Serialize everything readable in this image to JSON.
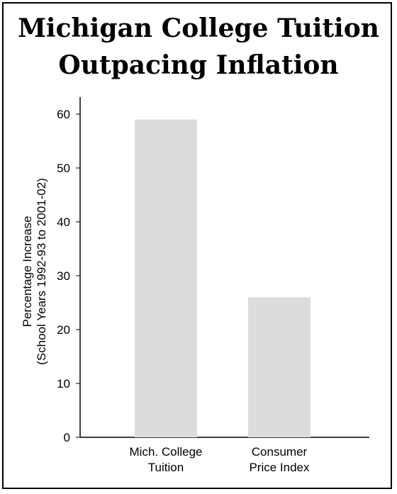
{
  "chart_data": {
    "type": "bar",
    "title_lines": [
      "Michigan College Tuition",
      "Outpacing Inflation"
    ],
    "ylabel_lines": [
      "Percentage Increase",
      "(School Years 1992-93 to 2001-02)"
    ],
    "categories": [
      [
        "Mich. College",
        "Tuition"
      ],
      [
        "Consumer",
        "Price Index"
      ]
    ],
    "values": [
      59,
      26
    ],
    "ylim": [
      0,
      60
    ],
    "yticks": [
      0,
      10,
      20,
      30,
      40,
      50,
      60
    ],
    "bar_color": "#dcdcdc",
    "grid": false
  }
}
